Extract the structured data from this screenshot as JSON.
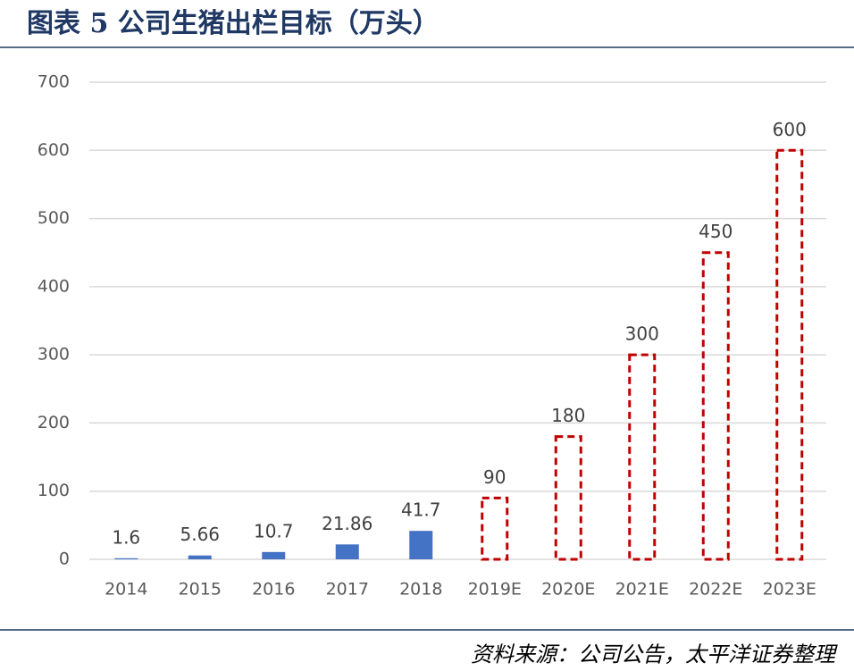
{
  "chart_data": {
    "type": "bar",
    "title": "图表 5 公司生猪出栏目标（万头）",
    "categories": [
      "2014",
      "2015",
      "2016",
      "2017",
      "2018",
      "2019E",
      "2020E",
      "2021E",
      "2022E",
      "2023E"
    ],
    "values": [
      1.6,
      5.66,
      10.7,
      21.86,
      41.7,
      90,
      180,
      300,
      450,
      600
    ],
    "colors": [
      "#4472c4",
      "#4472c4",
      "#4472c4",
      "#4472c4",
      "#4472c4",
      "#c00000",
      "#c00000",
      "#c00000",
      "#c00000",
      "#c00000"
    ],
    "dashed": [
      false,
      false,
      false,
      false,
      false,
      true,
      true,
      true,
      true,
      true
    ],
    "ylim": [
      0,
      700
    ],
    "yticks": [
      0,
      100,
      200,
      300,
      400,
      500,
      600,
      700
    ],
    "grid": true,
    "source": "资料来源：公司公告，太平洋证券整理"
  }
}
